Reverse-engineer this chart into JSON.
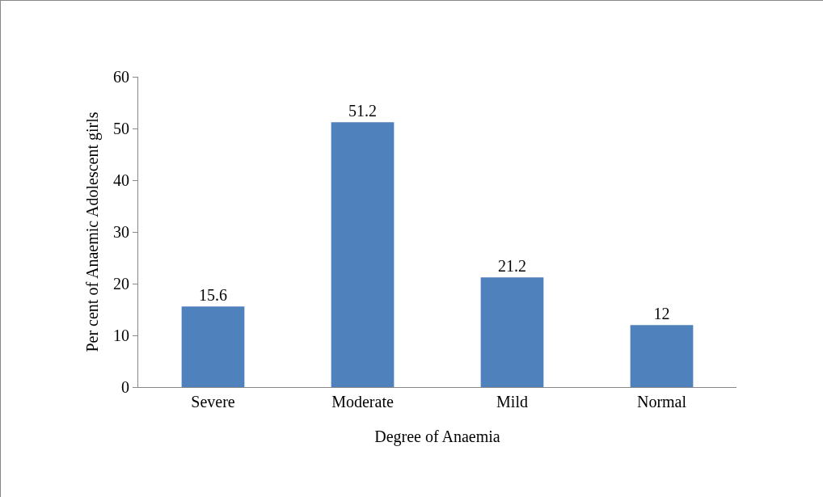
{
  "chart_data": {
    "type": "bar",
    "xlabel": "Degree of Anaemia",
    "ylabel": "Per cent of Anaemic Adolescent girls",
    "categories": [
      "Severe",
      "Moderate",
      "Mild",
      "Normal"
    ],
    "values": [
      15.6,
      51.2,
      21.2,
      12
    ],
    "color": "#4f81bd",
    "ylim": [
      0,
      60
    ],
    "yticks": [
      0,
      10,
      20,
      30,
      40,
      50,
      60
    ],
    "grid": false,
    "data_labels": true
  }
}
